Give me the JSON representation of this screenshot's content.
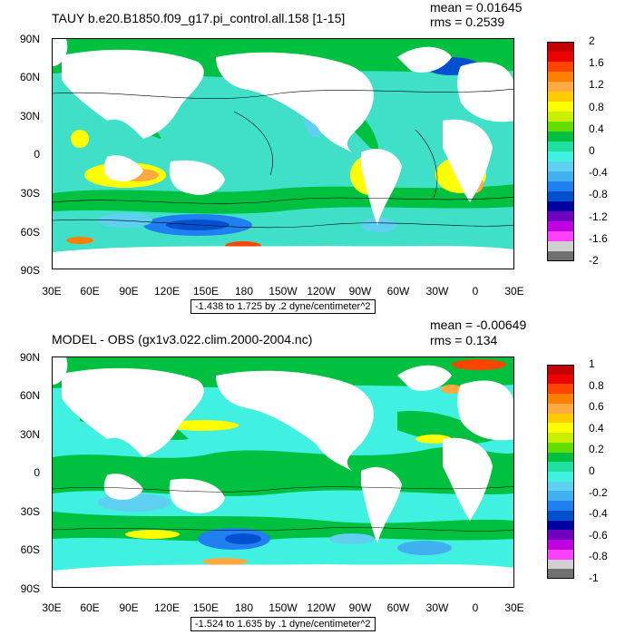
{
  "x_ticks": [
    "30E",
    "60E",
    "90E",
    "120E",
    "150E",
    "180",
    "150W",
    "120W",
    "90W",
    "60W",
    "30W",
    "0",
    "30E"
  ],
  "y_ticks": [
    "90N",
    "60N",
    "30N",
    "0",
    "30S",
    "60S",
    "90S"
  ],
  "panels": [
    {
      "title": "TAUY b.e20.B1850.f09_g17.pi_control.all.158 [1-15]",
      "mean_text": "mean = 0.01645",
      "rms_text": "rms = 0.2539",
      "range_text": "-1.438 to 1.725 by .2 dyne/centimeter^2",
      "colorbar_labels": [
        "2",
        "1.6",
        "1.2",
        "0.8",
        "0.4",
        "0",
        "-0.4",
        "-0.8",
        "-1.2",
        "-1.6",
        "-2"
      ],
      "colorbar_colors": [
        "#c40000",
        "#ee0000",
        "#ff4400",
        "#ff8000",
        "#ffaa40",
        "#ffcc00",
        "#ffff00",
        "#c8f000",
        "#66dd00",
        "#00c040",
        "#20e0a0",
        "#40f0e0",
        "#60d0f0",
        "#40b0f0",
        "#2080f0",
        "#0050d0",
        "#0000a0",
        "#7000c0",
        "#c000e0",
        "#ff40ff",
        "#d0d0d0",
        "#707070"
      ]
    },
    {
      "title": "MODEL - OBS (gx1v3.022.clim.2000-2004.nc)",
      "mean_text": "mean = -0.00649",
      "rms_text": "rms = 0.134",
      "range_text": "-1.524 to 1.635 by .1 dyne/centimeter^2",
      "colorbar_labels": [
        "1",
        "0.8",
        "0.6",
        "0.4",
        "0.2",
        "0",
        "-0.2",
        "-0.4",
        "-0.6",
        "-0.8",
        "-1"
      ],
      "colorbar_colors": [
        "#c40000",
        "#ee0000",
        "#ff4400",
        "#ff8000",
        "#ffaa40",
        "#ffcc00",
        "#ffff00",
        "#c8f000",
        "#66dd00",
        "#00c040",
        "#20e0a0",
        "#40f0e0",
        "#60d0f0",
        "#40b0f0",
        "#2080f0",
        "#0050d0",
        "#0000a0",
        "#7000c0",
        "#c000e0",
        "#ff40ff",
        "#d0d0d0",
        "#707070"
      ]
    }
  ]
}
